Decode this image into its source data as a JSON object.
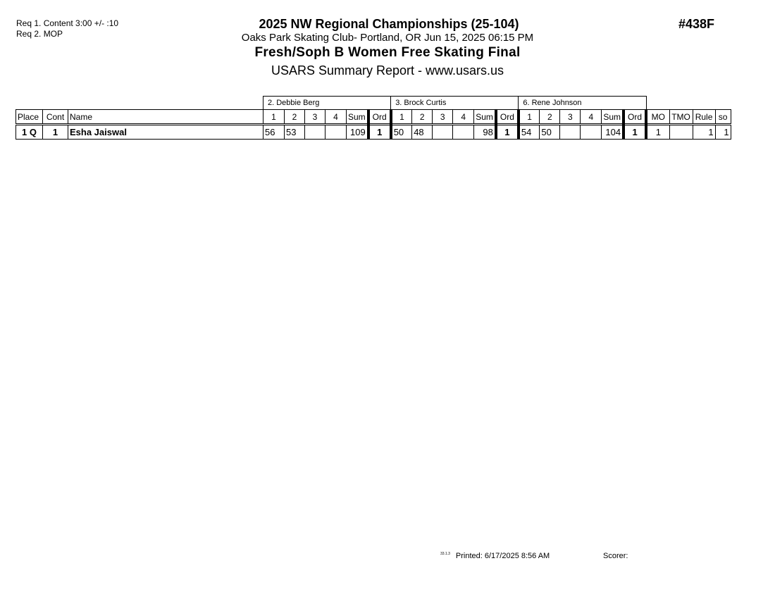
{
  "requirements": [
    "Req  1.  Content 3:00 +/- :10",
    "Req  2.  MOP"
  ],
  "header": {
    "title": "2025 NW Regional Championships (25-104)",
    "location": "Oaks Park Skating Club- Portland, OR  Jun 15, 2025  06:15 PM",
    "event": "Fresh/Soph B Women Free Skating Final",
    "report": "USARS Summary Report - www.usars.us",
    "event_number": "#438F"
  },
  "table": {
    "judges": [
      "2.  Debbie Berg",
      "3.  Brock Curtis",
      "6.  Rene Johnson"
    ],
    "columns": {
      "place": "Place",
      "cont": "Cont",
      "name": "Name",
      "judge_cols": [
        "1",
        "2",
        "3",
        "4",
        "Sum",
        "Ord"
      ],
      "tail": [
        "MO",
        "TMO",
        "Rule",
        "so"
      ]
    },
    "rows": [
      {
        "place": "1 Q",
        "cont": "1",
        "name": "Esha Jaiswal",
        "judges": [
          [
            "56",
            "53",
            "",
            "",
            "109",
            "1"
          ],
          [
            "50",
            "48",
            "",
            "",
            "98",
            "1"
          ],
          [
            "54",
            "50",
            "",
            "",
            "104",
            "1"
          ]
        ],
        "mo": "1",
        "tmo": "",
        "rule": "1",
        "so": "1"
      }
    ]
  },
  "footer": {
    "version": "33.1.3",
    "printed": "Printed:  6/17/2025  8:56 AM",
    "scorer": "Scorer:"
  }
}
